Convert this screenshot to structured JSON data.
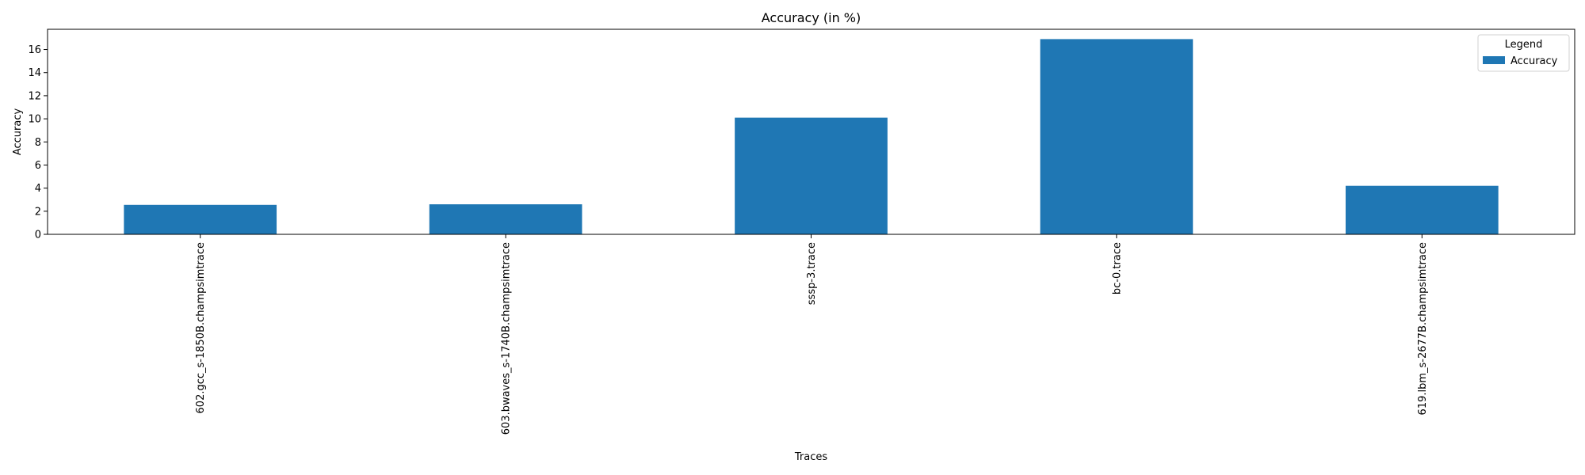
{
  "chart_data": {
    "type": "bar",
    "title": "Accuracy (in %)",
    "xlabel": "Traces",
    "ylabel": "Accuracy",
    "categories": [
      "602.gcc_s-1850B.champsimtrace",
      "603.bwaves_s-1740B.champsimtrace",
      "sssp-3.trace",
      "bc-0.trace",
      "619.lbm_s-2677B.champsimtrace"
    ],
    "series": [
      {
        "name": "Accuracy",
        "values": [
          2.55,
          2.6,
          10.1,
          16.9,
          4.2
        ]
      }
    ],
    "ylim": [
      0,
      17.75
    ],
    "yticks": [
      0,
      2,
      4,
      6,
      8,
      10,
      12,
      14,
      16
    ],
    "grid": false,
    "legend": {
      "title": "Legend",
      "placement": "top-right"
    }
  },
  "colors": {
    "bar": "#1f77b4"
  }
}
